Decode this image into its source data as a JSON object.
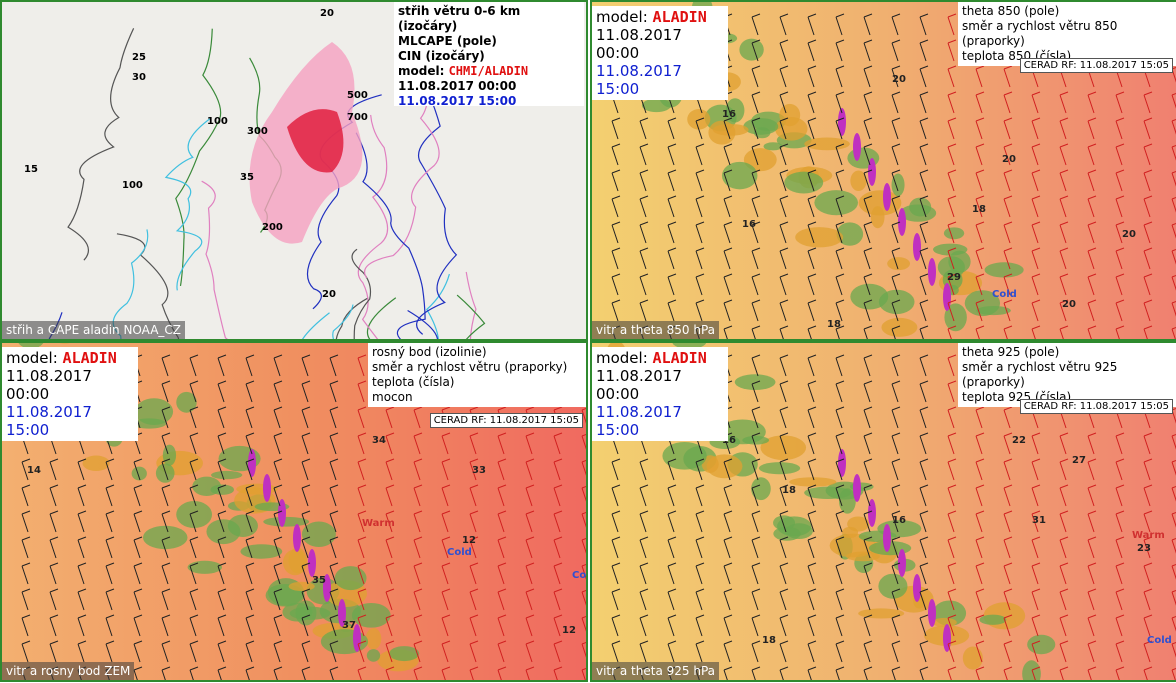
{
  "panels": [
    {
      "legend": [
        "střih větru 0-6 km (izočáry)",
        "MLCAPE (pole)",
        "CIN (izočáry)"
      ],
      "model_label": "model:",
      "model": "CHMI/ALADIN",
      "run": "11.08.2017 00:00",
      "valid": "11.08.2017 15:00",
      "footer": "střih a CAPE aladin NOAA_CZ",
      "map_labels": [
        "20",
        "25",
        "30",
        "100",
        "300",
        "35",
        "500",
        "700",
        "15",
        "200",
        "100",
        "20"
      ]
    },
    {
      "legend": [
        "theta 850 (pole)",
        "směr a rychlost větru 850 (praporky)",
        "teplota 850 (čísla)"
      ],
      "model_label": "model:",
      "model": "ALADIN",
      "run": "11.08.2017 00:00",
      "valid": "11.08.2017 15:00",
      "stamp": "CERAD RF: 11.08.2017 15:05",
      "footer": "vitr a theta 850 hPa",
      "map_labels": [
        "20",
        "16",
        "18",
        "20",
        "29",
        "Cold",
        "20",
        "18",
        "16",
        "20"
      ]
    },
    {
      "legend": [
        "rosný bod (izolinie)",
        "směr a rychlost větru (praporky)",
        "teplota (čísla)",
        "mocon"
      ],
      "model_label": "model:",
      "model": "ALADIN",
      "run": "11.08.2017 00:00",
      "valid": "11.08.2017 15:00",
      "stamp": "CERAD RF: 11.08.2017 15:05",
      "footer": "vitr a rosny bod ZEM",
      "map_labels": [
        "14",
        "12",
        "Cold",
        "Cold",
        "Warm",
        "34",
        "33",
        "35",
        "37",
        "12"
      ]
    },
    {
      "legend": [
        "theta 925 (pole)",
        "směr a rychlost větru 925 (praporky)",
        "teplota 925 (čísla)"
      ],
      "model_label": "model:",
      "model": "ALADIN",
      "run": "11.08.2017 00:00",
      "valid": "11.08.2017 15:00",
      "stamp": "CERAD RF: 11.08.2017 15:05",
      "footer": "vitr a theta 925 hPa",
      "map_labels": [
        "16",
        "18",
        "22",
        "27",
        "31",
        "Warm",
        "Cold",
        "23",
        "18",
        "16"
      ]
    }
  ]
}
